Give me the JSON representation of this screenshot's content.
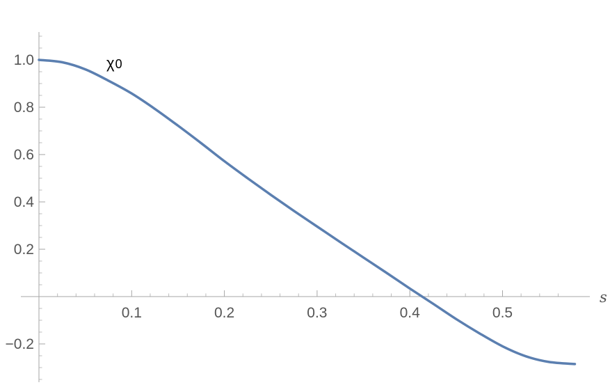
{
  "chart_data": {
    "type": "line",
    "title": "",
    "xlabel": "s",
    "ylabel": "",
    "xlim": [
      0,
      0.578
    ],
    "ylim": [
      -0.36,
      1.12
    ],
    "xticks": [
      {
        "value": 0.1,
        "label": "0.1"
      },
      {
        "value": 0.2,
        "label": "0.2"
      },
      {
        "value": 0.3,
        "label": "0.3"
      },
      {
        "value": 0.4,
        "label": "0.4"
      },
      {
        "value": 0.5,
        "label": "0.5"
      }
    ],
    "yticks": [
      {
        "value": -0.2,
        "label": "−0.2"
      },
      {
        "value": 0.2,
        "label": "0.2"
      },
      {
        "value": 0.4,
        "label": "0.4"
      },
      {
        "value": 0.6,
        "label": "0.6"
      },
      {
        "value": 0.8,
        "label": "0.8"
      },
      {
        "value": 1.0,
        "label": "1.0"
      }
    ],
    "grid": false,
    "series": [
      {
        "name": "χ0",
        "name_base": "χ",
        "name_sub": "0",
        "color": "#5b7fb0",
        "x": [
          0,
          0.025,
          0.05,
          0.075,
          0.1,
          0.125,
          0.15,
          0.175,
          0.2,
          0.225,
          0.25,
          0.275,
          0.3,
          0.325,
          0.35,
          0.375,
          0.4,
          0.425,
          0.45,
          0.475,
          0.5,
          0.525,
          0.55,
          0.578
        ],
        "y": [
          1.0,
          0.99,
          0.96,
          0.912,
          0.858,
          0.793,
          0.722,
          0.648,
          0.572,
          0.5,
          0.43,
          0.362,
          0.296,
          0.23,
          0.165,
          0.1,
          0.034,
          -0.03,
          -0.095,
          -0.155,
          -0.21,
          -0.252,
          -0.276,
          -0.285
        ]
      }
    ]
  }
}
